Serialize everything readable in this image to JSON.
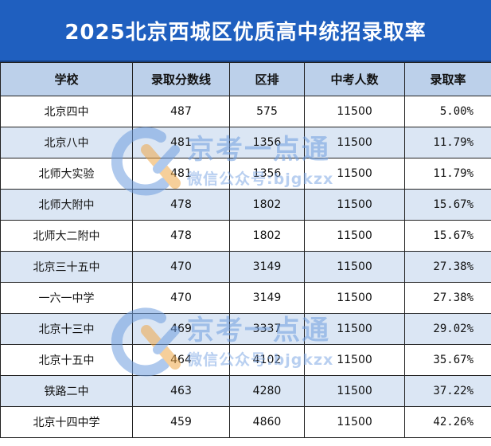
{
  "title": "2025北京西城区优质高中统招录取率",
  "columns": [
    "学校",
    "录取分数线",
    "区排",
    "中考人数",
    "录取率"
  ],
  "rows": [
    {
      "school": "北京四中",
      "score": "487",
      "rank": "575",
      "total": "11500",
      "rate": "5.00%"
    },
    {
      "school": "北京八中",
      "score": "481",
      "rank": "1356",
      "total": "11500",
      "rate": "11.79%"
    },
    {
      "school": "北师大实验",
      "score": "481",
      "rank": "1356",
      "total": "11500",
      "rate": "11.79%"
    },
    {
      "school": "北师大附中",
      "score": "478",
      "rank": "1802",
      "total": "11500",
      "rate": "15.67%"
    },
    {
      "school": "北师大二附中",
      "score": "478",
      "rank": "1802",
      "total": "11500",
      "rate": "15.67%"
    },
    {
      "school": "北京三十五中",
      "score": "470",
      "rank": "3149",
      "total": "11500",
      "rate": "27.38%"
    },
    {
      "school": "一六一中学",
      "score": "470",
      "rank": "3149",
      "total": "11500",
      "rate": "27.38%"
    },
    {
      "school": "北京十三中",
      "score": "469",
      "rank": "3337",
      "total": "11500",
      "rate": "29.02%"
    },
    {
      "school": "北京十五中",
      "score": "464",
      "rank": "4102",
      "total": "11500",
      "rate": "35.67%"
    },
    {
      "school": "铁路二中",
      "score": "463",
      "rank": "4280",
      "total": "11500",
      "rate": "37.22%"
    },
    {
      "school": "北京十四中学",
      "score": "459",
      "rank": "4860",
      "total": "11500",
      "rate": "42.26%"
    }
  ],
  "watermark": {
    "main": "京考一点通",
    "sub": "微信公众号:bjgkzx"
  },
  "colors": {
    "title_bg": "#1f5fbf",
    "header_bg": "#bcd0ea",
    "stripe_bg": "#dbe6f4",
    "watermark": "#6f9ee0"
  }
}
